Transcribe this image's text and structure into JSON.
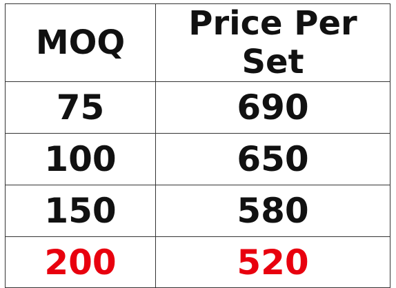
{
  "table": {
    "headers": [
      "MOQ",
      "Price Per Set"
    ],
    "rows": [
      {
        "moq": "75",
        "price": "690",
        "highlighted": false
      },
      {
        "moq": "100",
        "price": "650",
        "highlighted": false
      },
      {
        "moq": "150",
        "price": "580",
        "highlighted": false
      },
      {
        "moq": "200",
        "price": "520",
        "highlighted": true
      }
    ],
    "highlight_color": "#e8000e",
    "text_color": "#111111"
  }
}
